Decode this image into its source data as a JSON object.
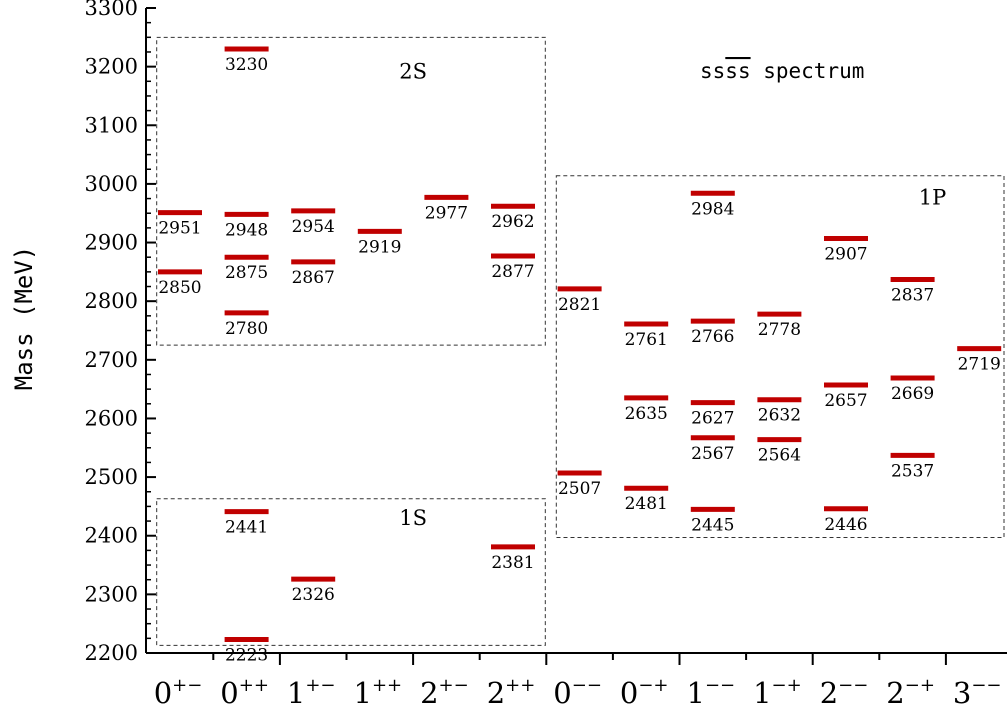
{
  "chart_data": {
    "type": "level-spectrum",
    "title": {
      "prefix": "ss",
      "overline": "ss",
      "suffix": " spectrum"
    },
    "ylabel": "Mass (MeV)",
    "ylim": [
      2200,
      3300
    ],
    "yticks": [
      2200,
      2300,
      2400,
      2500,
      2600,
      2700,
      2800,
      2900,
      3000,
      3100,
      3200,
      3300
    ],
    "columns": [
      {
        "J": "0",
        "PC": "+−"
      },
      {
        "J": "0",
        "PC": "++"
      },
      {
        "J": "1",
        "PC": "+−"
      },
      {
        "J": "1",
        "PC": "++"
      },
      {
        "J": "2",
        "PC": "+−"
      },
      {
        "J": "2",
        "PC": "++"
      },
      {
        "J": "0",
        "PC": "−−"
      },
      {
        "J": "0",
        "PC": "−+"
      },
      {
        "J": "1",
        "PC": "−−"
      },
      {
        "J": "1",
        "PC": "−+"
      },
      {
        "J": "2",
        "PC": "−−"
      },
      {
        "J": "2",
        "PC": "−+"
      },
      {
        "J": "3",
        "PC": "−−"
      }
    ],
    "levels": [
      {
        "col": 0,
        "mass": 2951,
        "label": "2951"
      },
      {
        "col": 0,
        "mass": 2850,
        "label": "2850"
      },
      {
        "col": 1,
        "mass": 3230,
        "label": "3230"
      },
      {
        "col": 1,
        "mass": 2948,
        "label": "2948"
      },
      {
        "col": 1,
        "mass": 2875,
        "label": "2875"
      },
      {
        "col": 1,
        "mass": 2780,
        "label": "2780"
      },
      {
        "col": 1,
        "mass": 2441,
        "label": "2441"
      },
      {
        "col": 1,
        "mass": 2223,
        "label": "2223"
      },
      {
        "col": 2,
        "mass": 2954,
        "label": "2954"
      },
      {
        "col": 2,
        "mass": 2867,
        "label": "2867"
      },
      {
        "col": 2,
        "mass": 2326,
        "label": "2326"
      },
      {
        "col": 3,
        "mass": 2919,
        "label": "2919"
      },
      {
        "col": 4,
        "mass": 2977,
        "label": "2977"
      },
      {
        "col": 5,
        "mass": 2962,
        "label": "2962"
      },
      {
        "col": 5,
        "mass": 2877,
        "label": "2877"
      },
      {
        "col": 5,
        "mass": 2381,
        "label": "2381"
      },
      {
        "col": 6,
        "mass": 2821,
        "label": "2821"
      },
      {
        "col": 6,
        "mass": 2507,
        "label": "2507"
      },
      {
        "col": 7,
        "mass": 2761,
        "label": "2761"
      },
      {
        "col": 7,
        "mass": 2635,
        "label": "2635"
      },
      {
        "col": 7,
        "mass": 2481,
        "label": "2481"
      },
      {
        "col": 8,
        "mass": 2984,
        "label": "2984"
      },
      {
        "col": 8,
        "mass": 2766,
        "label": "2766"
      },
      {
        "col": 8,
        "mass": 2627,
        "label": "2627"
      },
      {
        "col": 8,
        "mass": 2567,
        "label": "2567"
      },
      {
        "col": 8,
        "mass": 2445,
        "label": "2445"
      },
      {
        "col": 9,
        "mass": 2778,
        "label": "2778"
      },
      {
        "col": 9,
        "mass": 2632,
        "label": "2632"
      },
      {
        "col": 9,
        "mass": 2564,
        "label": "2564"
      },
      {
        "col": 10,
        "mass": 2907,
        "label": "2907"
      },
      {
        "col": 10,
        "mass": 2657,
        "label": "2657"
      },
      {
        "col": 10,
        "mass": 2446,
        "label": "2446"
      },
      {
        "col": 11,
        "mass": 2837,
        "label": "2837"
      },
      {
        "col": 11,
        "mass": 2669,
        "label": "2669"
      },
      {
        "col": 11,
        "mass": 2537,
        "label": "2537"
      },
      {
        "col": 12,
        "mass": 2719,
        "label": "2719"
      }
    ],
    "groups": [
      {
        "label": "2S",
        "cols": [
          0,
          5
        ],
        "mass_range": [
          2725,
          3250
        ]
      },
      {
        "label": "1S",
        "cols": [
          0,
          5
        ],
        "mass_range": [
          2213,
          2463
        ]
      },
      {
        "label": "1P",
        "cols": [
          6,
          12
        ],
        "mass_range": [
          2397,
          3014
        ]
      }
    ],
    "level_color": "#c00000",
    "grid": false,
    "legend": "none"
  }
}
